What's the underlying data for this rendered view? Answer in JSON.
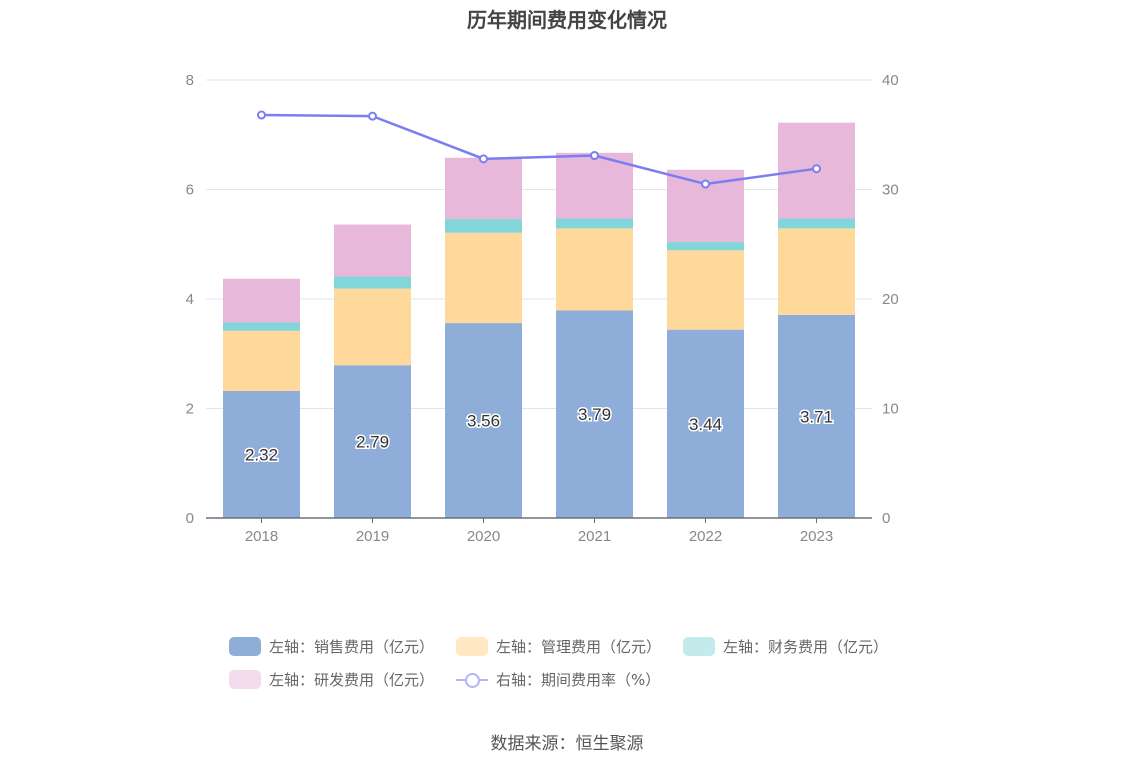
{
  "chart_data": {
    "type": "bar",
    "title": "历年期间费用变化情况",
    "categories": [
      "2018",
      "2019",
      "2020",
      "2021",
      "2022",
      "2023"
    ],
    "stacked": true,
    "series": [
      {
        "name": "左轴：销售费用（亿元）",
        "axis": "left",
        "type": "bar",
        "color": "#8eadd9",
        "values": [
          2.32,
          2.79,
          3.56,
          3.79,
          3.44,
          3.71
        ],
        "show_labels": true
      },
      {
        "name": "左轴：管理费用（亿元）",
        "axis": "left",
        "type": "bar",
        "color": "#ffd99b",
        "values": [
          1.1,
          1.4,
          1.65,
          1.5,
          1.45,
          1.58
        ]
      },
      {
        "name": "左轴：财务费用（亿元）",
        "axis": "left",
        "type": "bar",
        "color": "#82d5d8",
        "values": [
          0.15,
          0.22,
          0.25,
          0.18,
          0.15,
          0.18
        ]
      },
      {
        "name": "左轴：研发费用（亿元）",
        "axis": "left",
        "type": "bar",
        "color": "#e8b8db",
        "values": [
          0.8,
          0.95,
          1.12,
          1.2,
          1.32,
          1.75
        ]
      },
      {
        "name": "右轴：期间费用率（%）",
        "axis": "right",
        "type": "line",
        "color": "#7b7ef0",
        "values": [
          36.8,
          36.7,
          32.8,
          33.1,
          30.5,
          31.9
        ]
      }
    ],
    "y_left": {
      "min": 0,
      "max": 8,
      "ticks": [
        0,
        2,
        4,
        6,
        8
      ]
    },
    "y_right": {
      "min": 0,
      "max": 40,
      "ticks": [
        0,
        10,
        20,
        30,
        40
      ]
    },
    "grid": true,
    "legend_position": "bottom"
  },
  "source": "数据来源：恒生聚源"
}
